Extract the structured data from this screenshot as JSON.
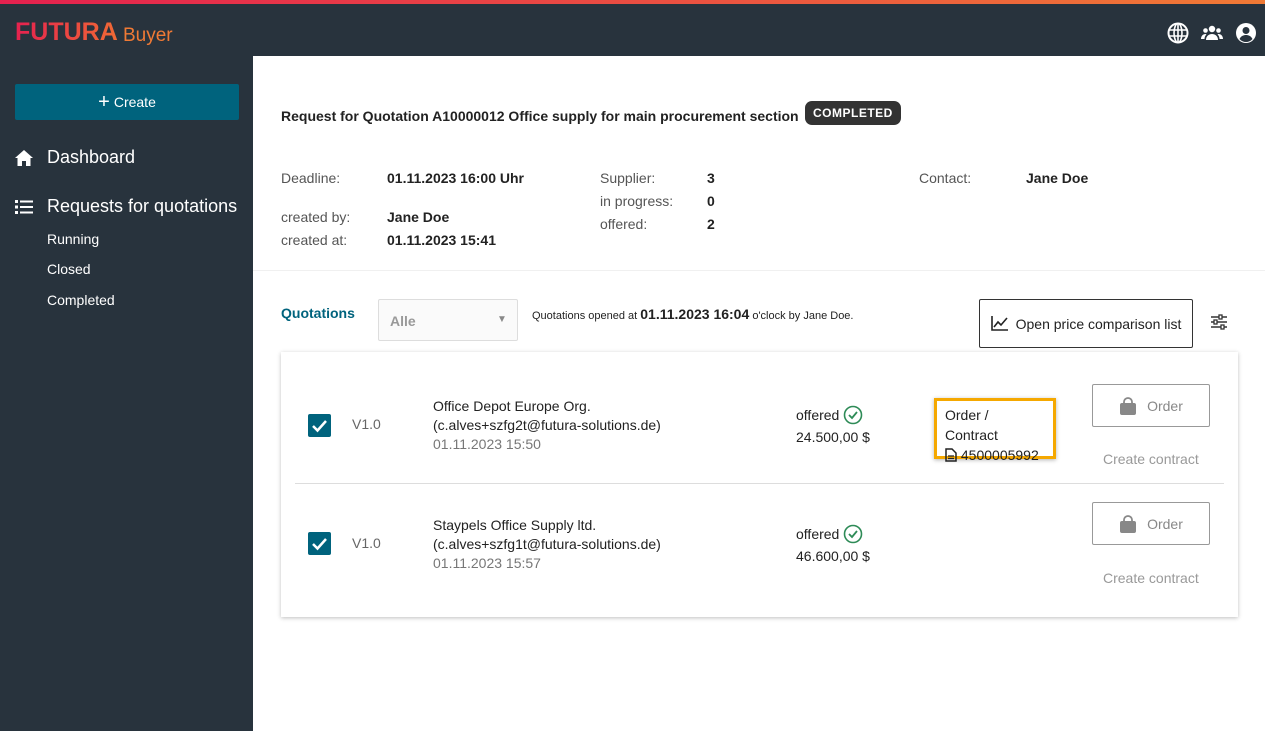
{
  "header": {
    "logo": "FUTURA",
    "product": "Buyer",
    "icons": [
      "globe-icon",
      "users-icon",
      "account-icon"
    ],
    "accent": "#e5214f"
  },
  "sidebar": {
    "create_label": "Create",
    "items": [
      {
        "label": "Dashboard",
        "icon": "home-icon"
      },
      {
        "label": "Requests for quotations",
        "icon": "list-icon"
      }
    ],
    "subitems": [
      "Running",
      "Closed",
      "Completed"
    ]
  },
  "rfq": {
    "title": "Request for Quotation A10000012 Office supply for main procurement section",
    "status": "COMPLETED",
    "deadline_label": "Deadline:",
    "deadline": "01.11.2023 16:00 Uhr",
    "created_by_label": "created by:",
    "created_by": "Jane Doe",
    "created_at_label": "created at:",
    "created_at": "01.11.2023 15:41",
    "supplier_label": "Supplier:",
    "supplier": "3",
    "in_progress_label": "in progress:",
    "in_progress": "0",
    "offered_label": "offered:",
    "offered": "2",
    "contact_label": "Contact:",
    "contact": "Jane Doe"
  },
  "quotations": {
    "title": "Quotations",
    "filter": "Alle",
    "opened_prefix": "Quotations opened at",
    "opened_at": "01.11.2023 16:04",
    "opened_suffix": "o'clock by Jane Doe.",
    "compare_label": "Open price comparison list",
    "rows": [
      {
        "version": "V1.0",
        "supplier": "Office Depot Europe Org.",
        "email": "(c.alves+szfg2t@futura-solutions.de)",
        "date": "01.11.2023 15:50",
        "status": "offered",
        "amount": "24.500,00 $",
        "order_contract_label": "Order / Contract",
        "order_number": "4500005992",
        "order_label": "Order",
        "contract_label": "Create contract"
      },
      {
        "version": "V1.0",
        "supplier": "Staypels Office Supply ltd.",
        "email": "(c.alves+szfg1t@futura-solutions.de)",
        "date": "01.11.2023 15:57",
        "status": "offered",
        "amount": "46.600,00 $",
        "order_label": "Order",
        "contract_label": "Create contract"
      }
    ]
  }
}
